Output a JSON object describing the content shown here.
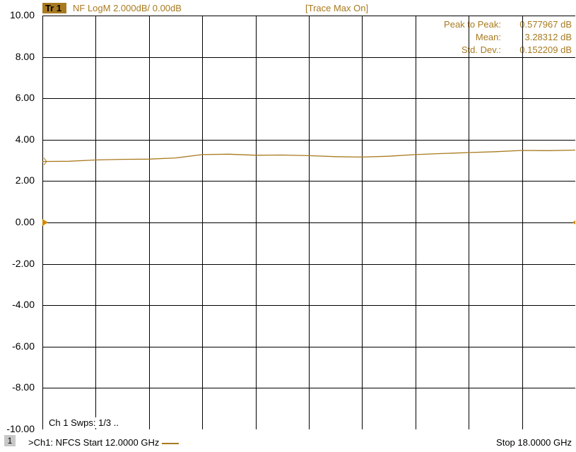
{
  "header": {
    "trace_badge": "Tr 1",
    "trace_format": "NF LogM 2.000dB/  0.00dB",
    "trace_max": "[Trace Max On]"
  },
  "stats": [
    {
      "label": "Peak to Peak:",
      "value": "0.577967 dB"
    },
    {
      "label": "Mean:",
      "value": "3.28312 dB"
    },
    {
      "label": "Std. Dev.:",
      "value": "0.152209 dB"
    }
  ],
  "channel_status": "Ch 1  Swps: 1/3 ..",
  "footer": {
    "channel_number": "1",
    "left_text": ">Ch1: NFCS  Start  12.0000 GHz",
    "stop_text": "Stop  18.0000 GHz"
  },
  "colors": {
    "trace": "#a87a1f",
    "grid": "#000000",
    "background": "#ffffff",
    "reference_marker": "#d08a00"
  },
  "chart_data": {
    "type": "line",
    "title": "",
    "xlabel": "",
    "ylabel": "",
    "x_unit": "GHz",
    "y_unit": "dB",
    "xlim": [
      12.0,
      18.0
    ],
    "ylim": [
      -10.0,
      10.0
    ],
    "y_ticks": [
      "10.00",
      "8.00",
      "6.00",
      "4.00",
      "2.00",
      "0.00",
      "-2.00",
      "-4.00",
      "-6.00",
      "-8.00",
      "-10.00"
    ],
    "y_tick_values": [
      10,
      8,
      6,
      4,
      2,
      0,
      -2,
      -4,
      -6,
      -8,
      -10
    ],
    "x_divisions": 10,
    "y_divisions": 10,
    "grid": true,
    "reference_level": 0.0,
    "series": [
      {
        "x": [
          12.0,
          12.3,
          12.6,
          12.9,
          13.2,
          13.5,
          13.8,
          14.1,
          14.4,
          14.7,
          15.0,
          15.3,
          15.6,
          15.9,
          16.2,
          16.5,
          16.8,
          17.1,
          17.4,
          17.7,
          18.0
        ],
        "values": [
          2.95,
          2.96,
          3.02,
          3.05,
          3.06,
          3.12,
          3.28,
          3.3,
          3.25,
          3.26,
          3.23,
          3.18,
          3.16,
          3.2,
          3.28,
          3.33,
          3.38,
          3.42,
          3.48,
          3.47,
          3.5
        ]
      }
    ]
  }
}
